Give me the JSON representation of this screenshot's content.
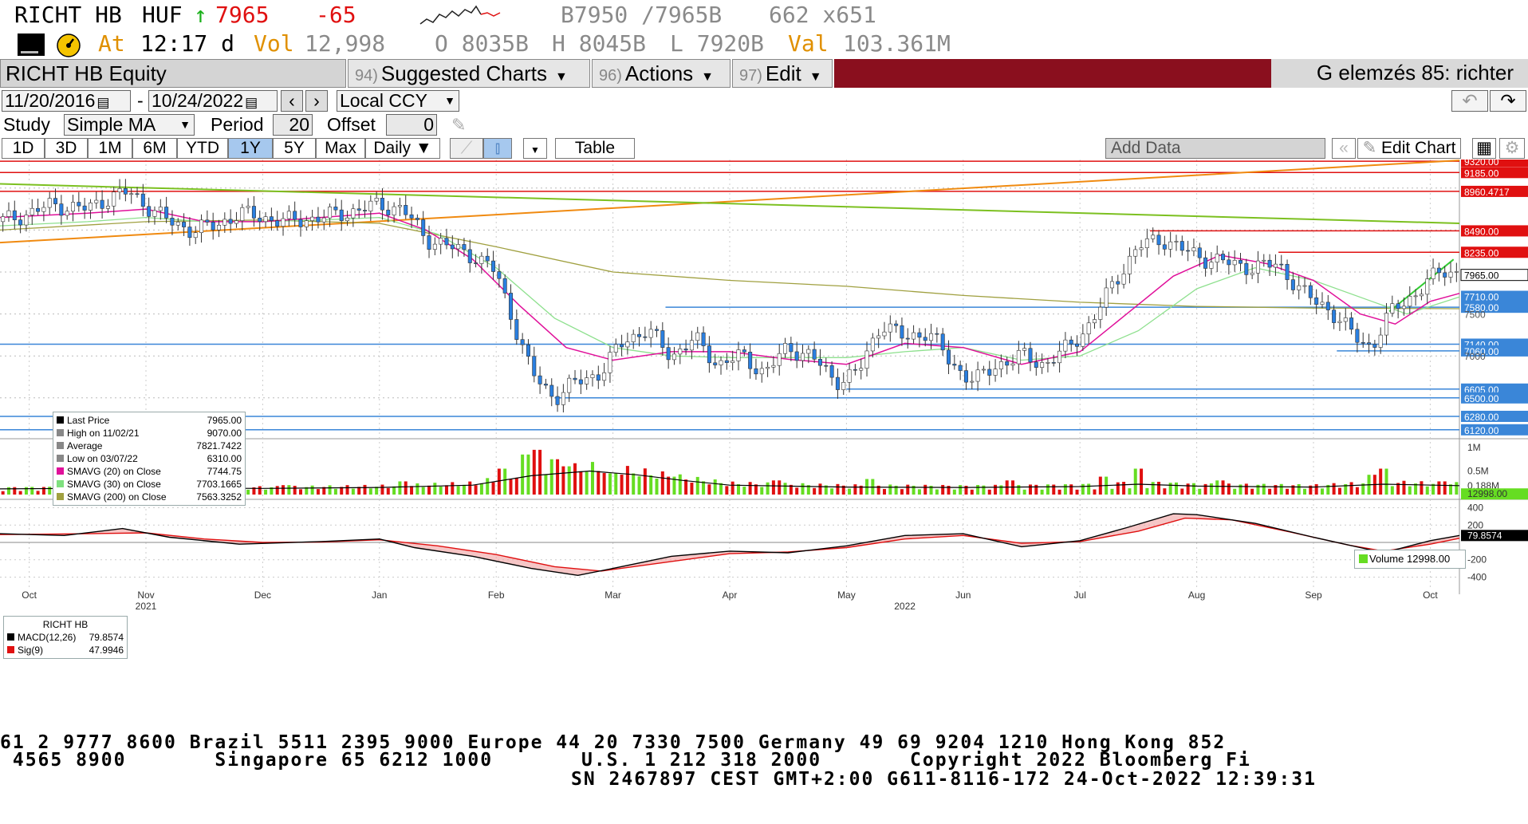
{
  "quote": {
    "ticker": "RICHT HB",
    "currency": "HUF",
    "arrow": "↑",
    "last": "7965",
    "change": "-65",
    "bid_ask": "B7950 /7965B",
    "size": "662 x651",
    "at_label": "At",
    "time": "12:17 d",
    "vol_label": "Vol",
    "volume": "12,998",
    "open": "O 8035B",
    "high": "H 8045B",
    "low": "L 7920B",
    "val_label": "Val",
    "value": "103.361M"
  },
  "toolbar": {
    "security": "RICHT HB Equity",
    "suggested_num": "94)",
    "suggested": "Suggested Charts",
    "actions_num": "96)",
    "actions": "Actions",
    "edit_num": "97)",
    "edit": "Edit",
    "chart_name": "G elemzés 85: richter"
  },
  "range": {
    "start": "11/20/2016",
    "dash": "-",
    "end": "10/24/2022",
    "ccy": "Local CCY"
  },
  "study": {
    "label": "Study",
    "value": "Simple MA",
    "period_label": "Period",
    "period": "20",
    "offset_label": "Offset",
    "offset": "0"
  },
  "tabs": [
    "1D",
    "3D",
    "1M",
    "6M",
    "YTD",
    "1Y",
    "5Y",
    "Max"
  ],
  "selected_tab": "1Y",
  "daily": "Daily ▼",
  "table_label": "Table",
  "add_data": "Add Data",
  "edit_chart": "Edit Chart",
  "legend_main": {
    "rows": [
      {
        "label": "Last Price",
        "value": "7965.00",
        "color": "#000000"
      },
      {
        "label": "High on 11/02/21",
        "value": "9070.00",
        "color": "#888888"
      },
      {
        "label": "Average",
        "value": "7821.7422",
        "color": "#888888"
      },
      {
        "label": "Low on 03/07/22",
        "value": "6310.00",
        "color": "#888888"
      },
      {
        "label": "SMAVG (20)  on Close",
        "value": "7744.75",
        "color": "#e0109a"
      },
      {
        "label": "SMAVG (30)  on Close",
        "value": "7703.1665",
        "color": "#7ee07e"
      },
      {
        "label": "SMAVG (200)  on Close",
        "value": "7563.3252",
        "color": "#a0a040"
      }
    ]
  },
  "legend_volume": {
    "label": "Volume",
    "value": "12998.00",
    "color": "#66dd22"
  },
  "legend_macd": {
    "title": "RICHT HB",
    "rows": [
      {
        "label": "MACD(12,26)",
        "value": "79.8574",
        "color": "#000000"
      },
      {
        "label": "Sig(9)",
        "value": "47.9946",
        "color": "#e01010"
      }
    ]
  },
  "chart_data": {
    "type": "candlestick",
    "price_axis_labels": [
      {
        "v": 9320,
        "text": "9320.00",
        "color": "#e01010"
      },
      {
        "v": 9185,
        "text": "9185.00",
        "color": "#e01010"
      },
      {
        "v": 8960.4717,
        "text": "8960.4717",
        "color": "#e01010"
      },
      {
        "v": 8490,
        "text": "8490.00",
        "color": "#e01010"
      },
      {
        "v": 8235,
        "text": "8235.00",
        "color": "#e01010"
      },
      {
        "v": 7965,
        "text": "7965.00",
        "color": "#000000"
      },
      {
        "v": 7710,
        "text": "7710.00",
        "color": "#3a86d8"
      },
      {
        "v": 7580,
        "text": "7580.00",
        "color": "#3a86d8"
      },
      {
        "v": 7500,
        "text": "7500",
        "color": "#777777"
      },
      {
        "v": 7140,
        "text": "7140.00",
        "color": "#3a86d8"
      },
      {
        "v": 7060,
        "text": "7060.00",
        "color": "#3a86d8"
      },
      {
        "v": 7000,
        "text": "7000",
        "color": "#777777"
      },
      {
        "v": 6605,
        "text": "6605.00",
        "color": "#3a86d8"
      },
      {
        "v": 6500,
        "text": "6500.00",
        "color": "#3a86d8"
      },
      {
        "v": 6280,
        "text": "6280.00",
        "color": "#3a86d8"
      },
      {
        "v": 6120,
        "text": "6120.00",
        "color": "#3a86d8"
      }
    ],
    "volume_axis_labels": [
      {
        "v": 1.0,
        "text": "1M"
      },
      {
        "v": 0.5,
        "text": "0.5M"
      },
      {
        "v": 0.188,
        "text": "0.188M"
      },
      {
        "v": 0.013,
        "text": "12998.00"
      }
    ],
    "macd_axis_labels": [
      {
        "v": 400,
        "text": "400"
      },
      {
        "v": 200,
        "text": "200"
      },
      {
        "v": 79.8574,
        "text": "79.8574"
      },
      {
        "v": -200,
        "text": "-200"
      },
      {
        "v": -400,
        "text": "-400"
      }
    ],
    "months": [
      {
        "t": 0.0,
        "label": "Oct"
      },
      {
        "t": 1.0,
        "label": "Nov"
      },
      {
        "t": 2.0,
        "label": "Dec"
      },
      {
        "t": 3.0,
        "label": "Jan"
      },
      {
        "t": 4.0,
        "label": "Feb"
      },
      {
        "t": 5.0,
        "label": "Mar"
      },
      {
        "t": 6.0,
        "label": "Apr"
      },
      {
        "t": 7.0,
        "label": "May"
      },
      {
        "t": 8.0,
        "label": "Jun"
      },
      {
        "t": 9.0,
        "label": "Jul"
      },
      {
        "t": 10.0,
        "label": "Aug"
      },
      {
        "t": 11.0,
        "label": "Sep"
      },
      {
        "t": 12.0,
        "label": "Oct"
      }
    ],
    "years": [
      {
        "t": 1.0,
        "label": "2021"
      },
      {
        "t": 7.5,
        "label": "2022"
      }
    ],
    "close_path": [
      [
        -0.25,
        8600
      ],
      [
        0.0,
        8700
      ],
      [
        0.2,
        8800
      ],
      [
        0.5,
        8750
      ],
      [
        0.7,
        8900
      ],
      [
        0.85,
        8950
      ],
      [
        1.0,
        8800
      ],
      [
        1.2,
        8600
      ],
      [
        1.4,
        8500
      ],
      [
        1.6,
        8550
      ],
      [
        1.8,
        8700
      ],
      [
        2.0,
        8650
      ],
      [
        2.2,
        8600
      ],
      [
        2.5,
        8650
      ],
      [
        2.7,
        8700
      ],
      [
        3.0,
        8800
      ],
      [
        3.2,
        8750
      ],
      [
        3.4,
        8400
      ],
      [
        3.6,
        8300
      ],
      [
        3.8,
        8200
      ],
      [
        4.0,
        8000
      ],
      [
        4.1,
        7600
      ],
      [
        4.3,
        6800
      ],
      [
        4.5,
        6500
      ],
      [
        4.7,
        6700
      ],
      [
        4.9,
        6800
      ],
      [
        5.1,
        7200
      ],
      [
        5.3,
        7300
      ],
      [
        5.5,
        7000
      ],
      [
        5.7,
        7200
      ],
      [
        5.9,
        6900
      ],
      [
        6.1,
        7000
      ],
      [
        6.3,
        6800
      ],
      [
        6.5,
        7100
      ],
      [
        6.7,
        7000
      ],
      [
        6.9,
        6700
      ],
      [
        7.1,
        6800
      ],
      [
        7.3,
        7400
      ],
      [
        7.5,
        7200
      ],
      [
        7.7,
        7300
      ],
      [
        7.9,
        6900
      ],
      [
        8.1,
        6700
      ],
      [
        8.3,
        6900
      ],
      [
        8.5,
        7000
      ],
      [
        8.7,
        6900
      ],
      [
        8.9,
        7100
      ],
      [
        9.1,
        7400
      ],
      [
        9.3,
        7900
      ],
      [
        9.5,
        8300
      ],
      [
        9.7,
        8400
      ],
      [
        9.9,
        8250
      ],
      [
        10.1,
        8150
      ],
      [
        10.3,
        8100
      ],
      [
        10.5,
        8050
      ],
      [
        10.7,
        8100
      ],
      [
        10.9,
        7750
      ],
      [
        11.1,
        7600
      ],
      [
        11.3,
        7300
      ],
      [
        11.5,
        7100
      ],
      [
        11.7,
        7600
      ],
      [
        11.9,
        7750
      ],
      [
        12.1,
        8050
      ],
      [
        12.25,
        7965
      ]
    ],
    "sma20_path": [
      [
        -0.25,
        8650
      ],
      [
        0.5,
        8700
      ],
      [
        1.0,
        8750
      ],
      [
        1.5,
        8600
      ],
      [
        2.0,
        8600
      ],
      [
        2.5,
        8650
      ],
      [
        3.0,
        8700
      ],
      [
        3.4,
        8500
      ],
      [
        3.8,
        8150
      ],
      [
        4.2,
        7600
      ],
      [
        4.6,
        7100
      ],
      [
        5.0,
        6950
      ],
      [
        5.5,
        7050
      ],
      [
        6.0,
        7050
      ],
      [
        6.5,
        6960
      ],
      [
        7.0,
        6900
      ],
      [
        7.5,
        7150
      ],
      [
        8.0,
        7100
      ],
      [
        8.5,
        6900
      ],
      [
        9.0,
        7050
      ],
      [
        9.4,
        7500
      ],
      [
        9.8,
        7950
      ],
      [
        10.2,
        8200
      ],
      [
        10.6,
        8100
      ],
      [
        11.0,
        7900
      ],
      [
        11.4,
        7500
      ],
      [
        11.7,
        7380
      ],
      [
        12.0,
        7650
      ],
      [
        12.25,
        7745
      ]
    ],
    "sma30_path": [
      [
        -0.25,
        8550
      ],
      [
        0.5,
        8600
      ],
      [
        1.0,
        8650
      ],
      [
        1.5,
        8600
      ],
      [
        2.0,
        8600
      ],
      [
        2.5,
        8620
      ],
      [
        3.0,
        8650
      ],
      [
        3.5,
        8450
      ],
      [
        4.0,
        8050
      ],
      [
        4.5,
        7450
      ],
      [
        5.0,
        7100
      ],
      [
        5.5,
        7000
      ],
      [
        6.0,
        6980
      ],
      [
        6.5,
        6980
      ],
      [
        7.0,
        6980
      ],
      [
        7.5,
        7050
      ],
      [
        8.0,
        7100
      ],
      [
        8.5,
        6950
      ],
      [
        9.0,
        7000
      ],
      [
        9.5,
        7300
      ],
      [
        10.0,
        7800
      ],
      [
        10.5,
        8050
      ],
      [
        11.0,
        7900
      ],
      [
        11.5,
        7650
      ],
      [
        11.8,
        7500
      ],
      [
        12.25,
        7703
      ]
    ],
    "sma200_path": [
      [
        -0.25,
        8500
      ],
      [
        1.0,
        8600
      ],
      [
        2.0,
        8620
      ],
      [
        3.0,
        8580
      ],
      [
        4.0,
        8300
      ],
      [
        5.0,
        8000
      ],
      [
        6.0,
        7900
      ],
      [
        7.0,
        7830
      ],
      [
        8.0,
        7720
      ],
      [
        9.0,
        7640
      ],
      [
        10.0,
        7590
      ],
      [
        11.0,
        7570
      ],
      [
        12.25,
        7563
      ]
    ],
    "trend_lines": [
      {
        "color": "#f08a10",
        "from": [
          -0.25,
          8350
        ],
        "to": [
          12.25,
          9330
        ]
      },
      {
        "color": "#7cc020",
        "from": [
          -0.25,
          9050
        ],
        "to": [
          12.25,
          8580
        ]
      },
      {
        "color": "#33cc33",
        "from": [
          11.65,
          7530
        ],
        "to": [
          12.2,
          8150
        ]
      }
    ],
    "horizontal_levels": [
      {
        "v": 9320,
        "color": "#e01010",
        "from": -0.25
      },
      {
        "v": 9185,
        "color": "#e01010",
        "from": -0.25
      },
      {
        "v": 8960.4717,
        "color": "#e01010",
        "from": -0.25
      },
      {
        "v": 8490,
        "color": "#e01010",
        "from": 9.6
      },
      {
        "v": 8235,
        "color": "#e01010",
        "from": 10.7
      },
      {
        "v": 7580,
        "color": "#3a86d8",
        "from": 5.45
      },
      {
        "v": 7140,
        "color": "#3a86d8",
        "from": -0.25
      },
      {
        "v": 7060,
        "color": "#3a86d8",
        "from": 11.2
      },
      {
        "v": 6605,
        "color": "#3a86d8",
        "from": 7.0
      },
      {
        "v": 6500,
        "color": "#3a86d8",
        "from": 4.5
      },
      {
        "v": 6280,
        "color": "#3a86d8",
        "from": -0.25
      },
      {
        "v": 6120,
        "color": "#3a86d8",
        "from": -0.25
      }
    ],
    "volume_spikes": [
      [
        0.7,
        0.42
      ],
      [
        1.1,
        0.22
      ],
      [
        2.2,
        0.2
      ],
      [
        3.2,
        0.28
      ],
      [
        4.05,
        0.55
      ],
      [
        4.25,
        0.85
      ],
      [
        4.35,
        0.95
      ],
      [
        4.5,
        0.75
      ],
      [
        4.6,
        0.6
      ],
      [
        5.0,
        0.45
      ],
      [
        5.5,
        0.38
      ],
      [
        6.4,
        0.3
      ],
      [
        7.2,
        0.33
      ],
      [
        8.4,
        0.3
      ],
      [
        9.2,
        0.38
      ],
      [
        9.5,
        0.55
      ],
      [
        10.2,
        0.3
      ],
      [
        11.5,
        0.42
      ],
      [
        11.6,
        0.55
      ],
      [
        12.1,
        0.28
      ]
    ],
    "volume_avg_path": [
      [
        -0.25,
        0.12
      ],
      [
        1.0,
        0.14
      ],
      [
        2.0,
        0.13
      ],
      [
        3.0,
        0.15
      ],
      [
        3.8,
        0.2
      ],
      [
        4.3,
        0.4
      ],
      [
        4.8,
        0.5
      ],
      [
        5.2,
        0.42
      ],
      [
        5.6,
        0.3
      ],
      [
        6.0,
        0.2
      ],
      [
        7.0,
        0.16
      ],
      [
        8.0,
        0.15
      ],
      [
        9.0,
        0.17
      ],
      [
        9.5,
        0.22
      ],
      [
        10.0,
        0.18
      ],
      [
        11.0,
        0.16
      ],
      [
        11.6,
        0.22
      ],
      [
        12.25,
        0.19
      ]
    ],
    "macd_path": [
      [
        -0.25,
        100
      ],
      [
        0.3,
        80
      ],
      [
        0.8,
        160
      ],
      [
        1.2,
        60
      ],
      [
        1.8,
        -20
      ],
      [
        2.5,
        10
      ],
      [
        3.0,
        40
      ],
      [
        3.3,
        -60
      ],
      [
        3.8,
        -160
      ],
      [
        4.3,
        -300
      ],
      [
        4.7,
        -380
      ],
      [
        5.0,
        -300
      ],
      [
        5.5,
        -160
      ],
      [
        6.0,
        -100
      ],
      [
        6.5,
        -120
      ],
      [
        7.0,
        -40
      ],
      [
        7.5,
        80
      ],
      [
        8.0,
        100
      ],
      [
        8.5,
        -50
      ],
      [
        9.0,
        20
      ],
      [
        9.4,
        170
      ],
      [
        9.8,
        330
      ],
      [
        10.0,
        320
      ],
      [
        10.5,
        220
      ],
      [
        11.0,
        60
      ],
      [
        11.4,
        -60
      ],
      [
        11.6,
        -120
      ],
      [
        12.0,
        20
      ],
      [
        12.25,
        80
      ]
    ],
    "sig_path": [
      [
        -0.25,
        90
      ],
      [
        0.5,
        100
      ],
      [
        1.0,
        110
      ],
      [
        1.5,
        40
      ],
      [
        2.0,
        0
      ],
      [
        2.5,
        5
      ],
      [
        3.0,
        30
      ],
      [
        3.5,
        -40
      ],
      [
        4.0,
        -140
      ],
      [
        4.5,
        -280
      ],
      [
        4.9,
        -330
      ],
      [
        5.5,
        -220
      ],
      [
        6.0,
        -130
      ],
      [
        6.5,
        -110
      ],
      [
        7.0,
        -60
      ],
      [
        7.5,
        40
      ],
      [
        8.0,
        80
      ],
      [
        8.5,
        -10
      ],
      [
        9.0,
        10
      ],
      [
        9.5,
        130
      ],
      [
        9.9,
        280
      ],
      [
        10.3,
        260
      ],
      [
        10.8,
        120
      ],
      [
        11.3,
        -30
      ],
      [
        11.6,
        -100
      ],
      [
        12.0,
        -20
      ],
      [
        12.25,
        48
      ]
    ],
    "price_ylim": [
      6080,
      9340
    ],
    "macd_ylim": [
      -460,
      460
    ],
    "volume_ylim": [
      0,
      1.05
    ]
  },
  "footer": {
    "line1": "61 2 9777 8600 Brazil 5511 2395 9000 Europe 44 20 7330 7500 Germany 49 69 9204 1210 Hong Kong 852",
    "line2": " 4565 8900       Singapore 65 6212 1000       U.S. 1 212 318 2000       Copyright 2022 Bloomberg Fi",
    "line3": "SN 2467897 CEST GMT+2:00 G611-8116-172 24-Oct-2022 12:39:31"
  }
}
